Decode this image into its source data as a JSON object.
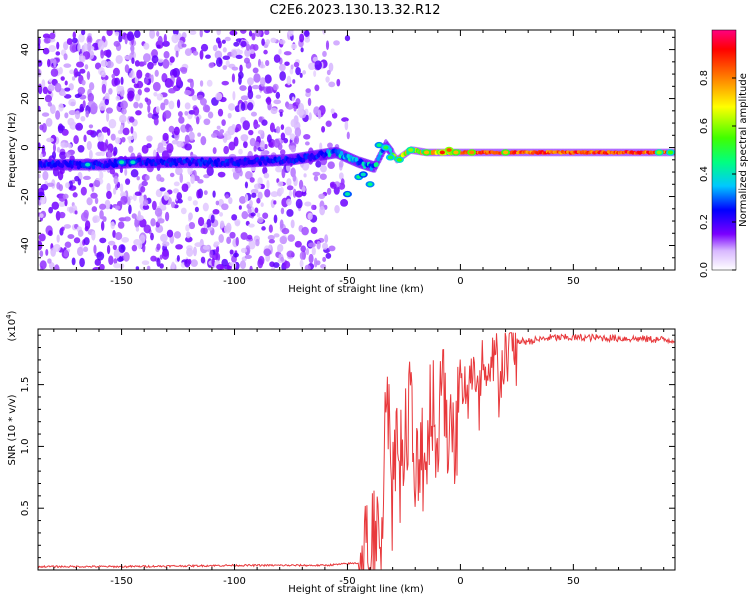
{
  "title": "C2E6.2023.130.13.32.R12",
  "colorbar": {
    "label": "Normalized spectral amplitude",
    "ticks": [
      "0.0",
      "0.2",
      "0.4",
      "0.6",
      "0.8"
    ],
    "range": [
      0,
      1
    ]
  },
  "chart_data": [
    {
      "type": "heatmap",
      "title": "",
      "xlabel": "Height of straight line (km)",
      "ylabel": "Frequency (Hz)",
      "xlim": [
        -187,
        95
      ],
      "ylim": [
        -50,
        48
      ],
      "xticks": [
        -150,
        -100,
        -50,
        0,
        50
      ],
      "xtick_labels": [
        "-150",
        "-100",
        "-50",
        "0",
        "50"
      ],
      "yticks": [
        -40,
        -20,
        0,
        20,
        40
      ],
      "ytick_labels": [
        "-40",
        "-20",
        "0",
        "20",
        "40"
      ],
      "ridge": {
        "x": [
          -187,
          -160,
          -145,
          -120,
          -100,
          -75,
          -55,
          -45,
          -38,
          -33,
          -28,
          -22,
          -15,
          -5,
          10,
          30,
          60,
          95
        ],
        "y": [
          -7,
          -7,
          -6,
          -6,
          -6,
          -5,
          -2,
          -6,
          -8,
          1,
          -5,
          -1,
          -2,
          -2,
          -2,
          -2,
          -2,
          -2
        ]
      },
      "noise_region_x": [
        -187,
        -55
      ]
    },
    {
      "type": "line",
      "title": "",
      "xlabel": "Height of straight line (km)",
      "ylabel": "SNR (10 * v/v)",
      "multiplier_label": "(x10",
      "multiplier_exp": "4",
      "multiplier_close": ")",
      "xlim": [
        -187,
        95
      ],
      "ylim": [
        0,
        1.95
      ],
      "xticks": [
        -150,
        -100,
        -50,
        0,
        50
      ],
      "xtick_labels": [
        "-150",
        "-100",
        "-50",
        "0",
        "50"
      ],
      "yticks": [
        0.5,
        1.0,
        1.5
      ],
      "ytick_labels": [
        "0.5",
        "1.0",
        "1.5"
      ],
      "color": "#e8393c",
      "series": [
        {
          "x": [
            -187,
            -150,
            -100,
            -60,
            -45,
            -38,
            -35,
            -32,
            -30,
            -28,
            -25,
            -22,
            -20,
            -17,
            -15,
            -12,
            -10,
            -8,
            -5,
            -2,
            0,
            5,
            8,
            10,
            12,
            15,
            18,
            20,
            22,
            25,
            30,
            40,
            60,
            80,
            95
          ],
          "y": [
            0.02,
            0.02,
            0.03,
            0.03,
            0.05,
            0.1,
            0.3,
            1.6,
            0.6,
            1.2,
            0.8,
            1.45,
            0.5,
            1.1,
            0.9,
            1.55,
            0.7,
            1.9,
            1.0,
            1.2,
            1.45,
            1.55,
            1.3,
            1.65,
            1.4,
            1.7,
            1.55,
            1.75,
            1.8,
            1.85,
            1.85,
            1.88,
            1.88,
            1.87,
            1.86
          ]
        }
      ]
    }
  ],
  "colors": {
    "line": "#e8393c",
    "background": "#ffffff"
  }
}
